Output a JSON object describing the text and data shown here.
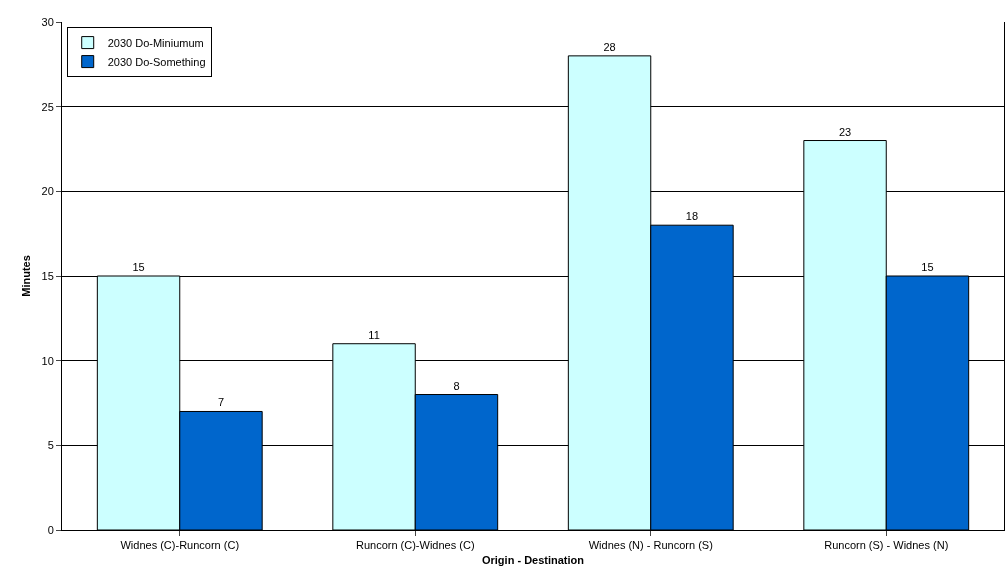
{
  "chart_data": {
    "type": "bar",
    "xlabel": "Origin - Destination",
    "ylabel": "Minutes",
    "categories": [
      "Widnes (C)-Runcorn (C)",
      "Runcorn (C)-Widnes (C)",
      "Widnes (N) - Runcorn (S)",
      "Runcorn (S) - Widnes (N)"
    ],
    "series": [
      {
        "name": "2030 Do-Miniumum",
        "color": "#ccffff",
        "values": [
          15,
          11,
          28,
          23
        ]
      },
      {
        "name": "2030 Do-Something",
        "color": "#0066cc",
        "values": [
          7,
          8,
          18,
          15
        ]
      }
    ],
    "ylim": [
      0,
      30
    ],
    "yticks": [
      0,
      5,
      10,
      15,
      20,
      25,
      30
    ],
    "grid": "y",
    "legend": "top left",
    "data_labels": true
  }
}
